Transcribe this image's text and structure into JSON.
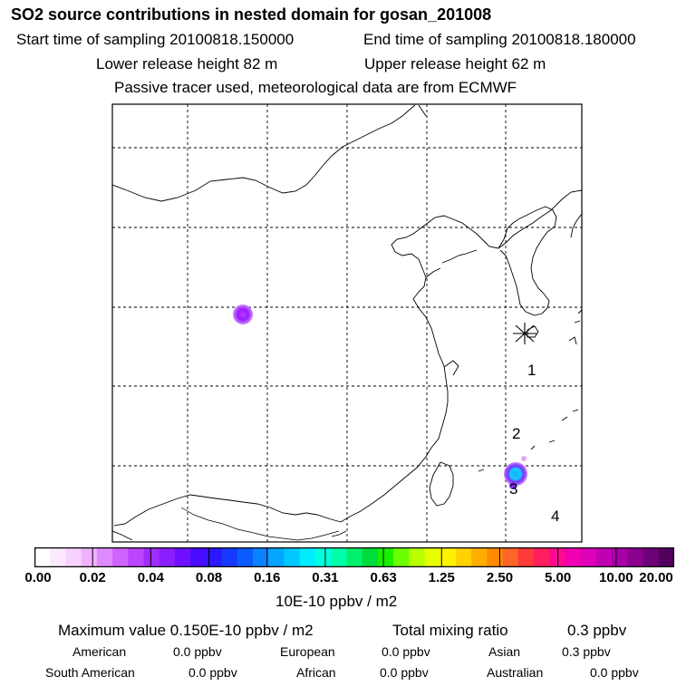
{
  "header": {
    "title": "SO2 source contributions in nested domain for gosan_201008",
    "start_label": "Start time of sampling 20100818.150000",
    "end_label": "End time of sampling 20100818.180000",
    "lower_label": "Lower release height   82 m",
    "upper_label": "Upper release height   62 m",
    "tracer_note": "Passive tracer used, meteorological data are from ECMWF"
  },
  "map": {
    "region_labels": [
      "1",
      "2",
      "3",
      "4"
    ],
    "receptor_marker": "asterisk-icon",
    "plume_colors": [
      "#9a1cff",
      "#19c7ff",
      "#c74dff"
    ]
  },
  "legend": {
    "ticks": [
      "0.00",
      "0.02",
      "0.04",
      "0.08",
      "0.16",
      "0.31",
      "0.63",
      "1.25",
      "2.50",
      "5.00",
      "10.00",
      "20.00"
    ],
    "colors": [
      "#ffffff",
      "#fde9ff",
      "#f8d2ff",
      "#f0b2ff",
      "#e08aff",
      "#cf63ff",
      "#bb44ff",
      "#a02cff",
      "#8a1eff",
      "#6e10ff",
      "#4a0cff",
      "#2a18ff",
      "#1738ff",
      "#0b5cff",
      "#0b82ff",
      "#05a6ff",
      "#00c9ff",
      "#00ecff",
      "#00ffdf",
      "#00ffaa",
      "#00f06e",
      "#00dc39",
      "#19f000",
      "#6cff00",
      "#b8ff00",
      "#e8ff00",
      "#fff200",
      "#ffd200",
      "#ffae00",
      "#ff8a00",
      "#ff6428",
      "#ff3a3a",
      "#ff1e5e",
      "#ff0a90",
      "#f000b0",
      "#dc00b8",
      "#c000b4",
      "#a800a8",
      "#8c0090",
      "#6e0078",
      "#50005c"
    ],
    "unit": "10E-10 ppbv / m2"
  },
  "summary": {
    "max_label": "Maximum value  0.150E-10 ppbv / m2",
    "total_label": "Total mixing ratio",
    "total_value": "0.3 ppbv",
    "rows": [
      [
        {
          "name": "American",
          "value": "0.0 ppbv"
        },
        {
          "name": "European",
          "value": "0.0 ppbv"
        },
        {
          "name": "Asian",
          "value": "0.3 ppbv"
        }
      ],
      [
        {
          "name": "South American",
          "value": "0.0 ppbv"
        },
        {
          "name": "African",
          "value": "0.0 ppbv"
        },
        {
          "name": "Australian",
          "value": "0.0 ppbv"
        }
      ]
    ]
  }
}
